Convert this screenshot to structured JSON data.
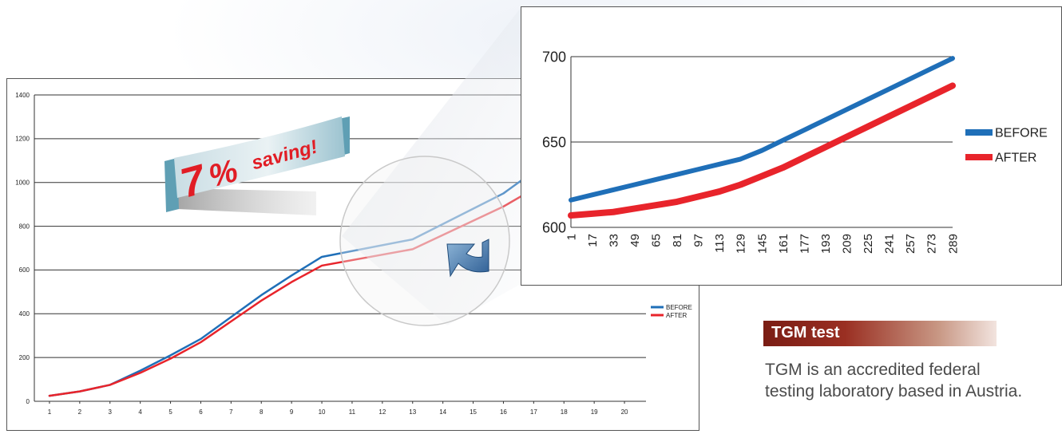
{
  "chart_data": [
    {
      "type": "line",
      "ylim": [
        0,
        1400
      ],
      "yticks": [
        0,
        200,
        400,
        600,
        800,
        1000,
        1200,
        1400
      ],
      "categories": [
        "1",
        "2",
        "3",
        "4",
        "5",
        "6",
        "7",
        "8",
        "9",
        "10",
        "11",
        "12",
        "13",
        "14",
        "15",
        "16",
        "17",
        "18",
        "19",
        "20"
      ],
      "grid": true,
      "legend": "right",
      "series": [
        {
          "name": "BEFORE",
          "color": "#1f6fb8",
          "values": [
            25,
            45,
            75,
            140,
            210,
            285,
            385,
            485,
            575,
            660,
            null,
            null,
            740,
            null,
            null,
            950,
            1050,
            null,
            null,
            null
          ]
        },
        {
          "name": "AFTER",
          "color": "#e8242b",
          "values": [
            25,
            45,
            75,
            130,
            195,
            270,
            365,
            460,
            545,
            620,
            null,
            null,
            695,
            null,
            null,
            890,
            970,
            null,
            null,
            null
          ]
        }
      ]
    },
    {
      "type": "line",
      "ylim": [
        600,
        700
      ],
      "yticks": [
        600,
        650,
        700
      ],
      "categories": [
        "1",
        "17",
        "33",
        "49",
        "65",
        "81",
        "97",
        "113",
        "129",
        "145",
        "161",
        "177",
        "193",
        "209",
        "225",
        "241",
        "257",
        "273",
        "289"
      ],
      "grid": true,
      "legend": "right",
      "series": [
        {
          "name": "BEFORE",
          "color": "#1f6fb8",
          "values": [
            616,
            619,
            622,
            625,
            628,
            631,
            634,
            637,
            640,
            645,
            651,
            657,
            663,
            669,
            675,
            681,
            687,
            693,
            699
          ]
        },
        {
          "name": "AFTER",
          "color": "#e8242b",
          "values": [
            607,
            608,
            609,
            611,
            613,
            615,
            618,
            621,
            625,
            630,
            635,
            641,
            647,
            653,
            659,
            665,
            671,
            677,
            683
          ]
        }
      ]
    }
  ],
  "callout": {
    "number": "7",
    "percent": "%",
    "word": "saving!"
  },
  "legend_labels": {
    "before": "BEFORE",
    "after": "AFTER"
  },
  "tgm": {
    "title": "TGM test",
    "body": "TGM is an accredited federal testing laboratory based  in Austria."
  }
}
